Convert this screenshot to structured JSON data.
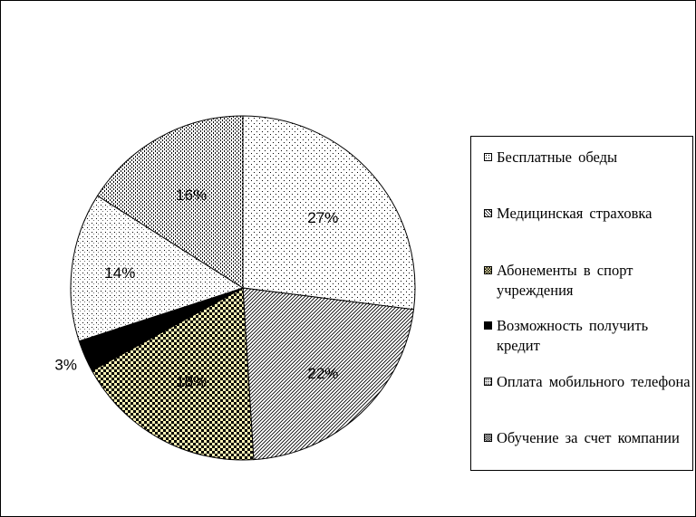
{
  "chart_data": {
    "type": "pie",
    "title": "",
    "start_angle_deg": 0,
    "direction": "clockwise",
    "slices": [
      {
        "label": "Бесплатные обеды",
        "value": 27,
        "display": "27%",
        "pattern": "dots-sparse"
      },
      {
        "label": "Медицинская страховка",
        "value": 22,
        "display": "22%",
        "pattern": "hatch-diagonal"
      },
      {
        "label": "Абонементы в спорт учреждения",
        "value": 18,
        "display": "18%",
        "pattern": "checker-yellow"
      },
      {
        "label": "Возможность получить кредит",
        "value": 3,
        "display": "3%",
        "pattern": "solid-black"
      },
      {
        "label": "Оплата мобильного телефона",
        "value": 14,
        "display": "14%",
        "pattern": "dots-small"
      },
      {
        "label": "Обучение за счет компании",
        "value": 16,
        "display": "16%",
        "pattern": "dots-dense"
      }
    ],
    "legend_placement": "right",
    "colors": {
      "fill_yellow": "#fbf3b5",
      "ink": "#000000",
      "background": "#ffffff"
    }
  }
}
